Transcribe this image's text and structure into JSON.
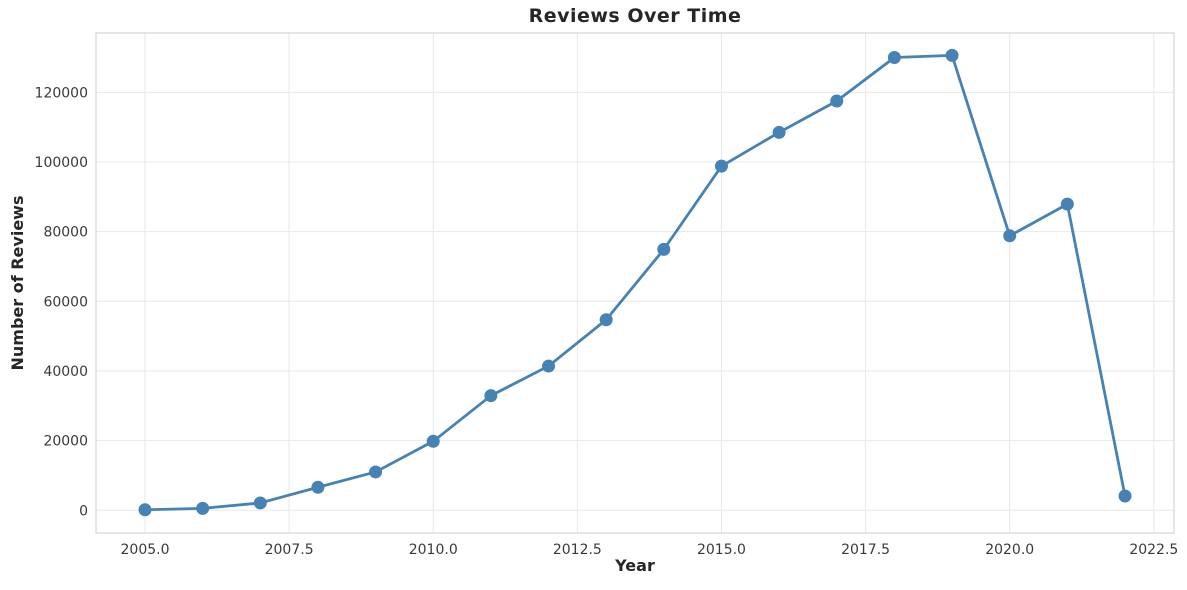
{
  "page": {
    "background": "#ffffff"
  },
  "chart_data": {
    "type": "line",
    "title": "Reviews Over Time",
    "xlabel": "Year",
    "ylabel": "Number of Reviews",
    "x": [
      2005,
      2006,
      2007,
      2008,
      2009,
      2010,
      2011,
      2012,
      2013,
      2014,
      2015,
      2016,
      2017,
      2018,
      2019,
      2020,
      2021,
      2022
    ],
    "series": [
      {
        "name": "reviews",
        "values": [
          150,
          550,
          2100,
          6600,
          11000,
          19800,
          32900,
          41400,
          54700,
          74900,
          98800,
          108500,
          117500,
          130000,
          130600,
          78800,
          87900,
          4100
        ]
      }
    ],
    "xlim": [
      2004.15,
      2022.85
    ],
    "ylim": [
      -6530,
      137030
    ],
    "x_ticks": [
      2005.0,
      2007.5,
      2010.0,
      2012.5,
      2015.0,
      2017.5,
      2020.0,
      2022.5
    ],
    "x_tick_labels": [
      "2005.0",
      "2007.5",
      "2010.0",
      "2012.5",
      "2015.0",
      "2017.5",
      "2020.0",
      "2022.5"
    ],
    "y_ticks": [
      0,
      20000,
      40000,
      60000,
      80000,
      100000,
      120000
    ],
    "y_tick_labels": [
      "0",
      "20000",
      "40000",
      "60000",
      "80000",
      "100000",
      "120000"
    ],
    "grid": true,
    "legend": "none",
    "line_color": "#4682b4",
    "marker": "circle",
    "marker_radius": 6.5,
    "line_width": 2.8,
    "grid_color": "#e8e8e8",
    "spine_color": "#d5d5d5",
    "text_color": "#3a3a3a"
  }
}
